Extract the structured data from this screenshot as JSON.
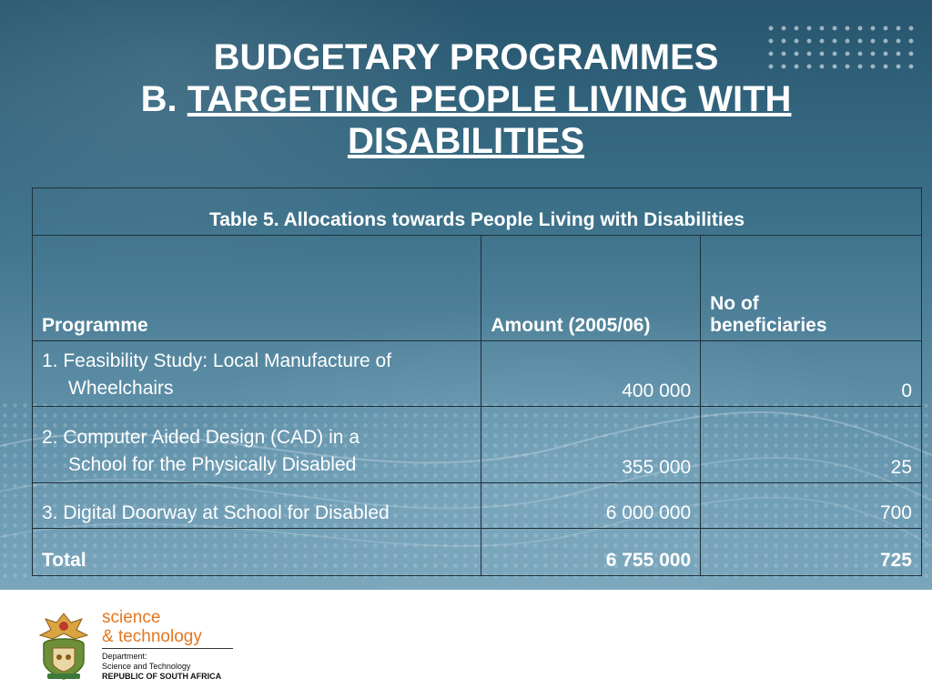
{
  "slide": {
    "title_line1": "BUDGETARY PROGRAMMES",
    "title_prefix": "B. ",
    "title_line2": "TARGETING PEOPLE LIVING WITH",
    "title_line3": "DISABILITIES"
  },
  "table": {
    "caption": "Table 5. Allocations towards People Living with Disabilities",
    "headers": {
      "programme": "Programme",
      "amount": "Amount (2005/06)",
      "beneficiaries_line1": "No of",
      "beneficiaries_line2": "beneficiaries"
    },
    "rows": [
      {
        "programme_line1": "1. Feasibility Study: Local Manufacture of",
        "programme_line2": "Wheelchairs",
        "amount": "400 000",
        "beneficiaries": "0"
      },
      {
        "programme_line1": "2. Computer Aided Design (CAD) in a",
        "programme_line2": "School for the Physically Disabled",
        "amount": "355 000",
        "beneficiaries": "25"
      },
      {
        "programme_line1": "3. Digital Doorway at School for Disabled",
        "amount": "6 000 000",
        "beneficiaries": "700"
      }
    ],
    "total": {
      "label": "Total",
      "amount": "6 755 000",
      "beneficiaries": "725"
    }
  },
  "footer": {
    "brand_line1": "science",
    "brand_line2": "& technology",
    "dept_line1": "Department:",
    "dept_line2": "Science and Technology",
    "dept_line3": "REPUBLIC OF SOUTH AFRICA",
    "brand_color": "#e4761d",
    "crest_icon": "coat-of-arms-icon"
  }
}
